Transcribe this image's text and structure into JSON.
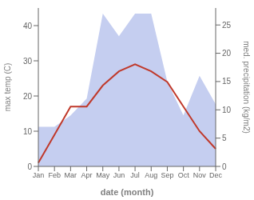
{
  "chart_data": {
    "type": "line",
    "xlabel": "date (month)",
    "ylabel": "max temp (C)",
    "y2label": "med. precipitation (kg/m2)",
    "categories": [
      "Jan",
      "Feb",
      "Mar",
      "Apr",
      "May",
      "Jun",
      "Jul",
      "Aug",
      "Sep",
      "Oct",
      "Nov",
      "Dec"
    ],
    "series": [
      {
        "type": "area",
        "axis": "y2",
        "color": "#c5cef0",
        "values": [
          7,
          7,
          9,
          12,
          27,
          23,
          27,
          27,
          15,
          9,
          16,
          11
        ]
      },
      {
        "type": "line",
        "color": "#c0392b",
        "values": [
          1,
          9,
          17,
          17,
          23,
          27,
          29,
          27,
          24,
          17,
          10,
          5
        ]
      }
    ],
    "ylim": [
      0,
      45
    ],
    "yticks": [
      0,
      10,
      20,
      30,
      40
    ],
    "y2lim": [
      0,
      28
    ],
    "y2ticks": [
      0,
      5,
      10,
      15,
      20,
      25
    ],
    "grid": false
  }
}
